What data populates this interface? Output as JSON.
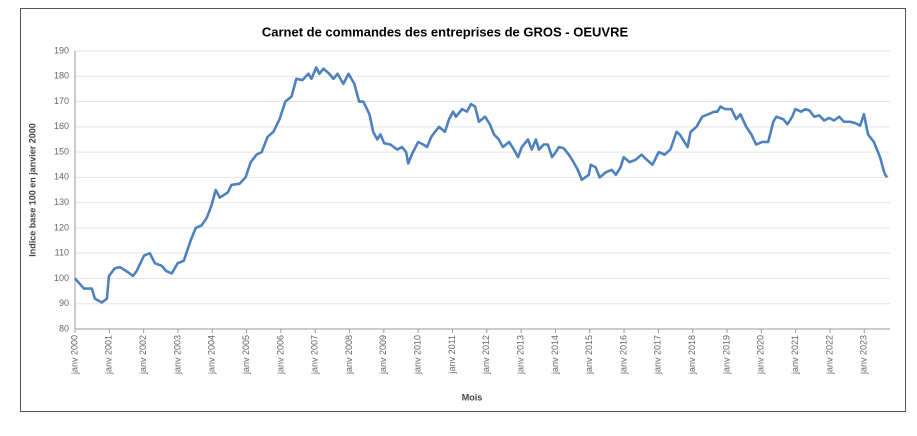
{
  "chart_data": {
    "type": "line",
    "title": "Carnet de commandes des entreprises de GROS - OEUVRE",
    "x_label": "Mois",
    "y_label": "Indice base 100 en janvier 2000",
    "x": [
      2000.0,
      2000.26,
      2000.49,
      2000.58,
      2000.78,
      2000.93,
      2000.99,
      2001.16,
      2001.31,
      2001.54,
      2001.69,
      2001.8,
      2002.01,
      2002.18,
      2002.33,
      2002.53,
      2002.65,
      2002.82,
      2002.99,
      2003.17,
      2003.37,
      2003.52,
      2003.69,
      2003.84,
      2003.98,
      2004.1,
      2004.22,
      2004.45,
      2004.56,
      2004.8,
      2004.97,
      2005.12,
      2005.29,
      2005.44,
      2005.61,
      2005.78,
      2005.96,
      2006.13,
      2006.31,
      2006.45,
      2006.63,
      2006.8,
      2006.89,
      2007.03,
      2007.12,
      2007.24,
      2007.41,
      2007.53,
      2007.65,
      2007.82,
      2007.97,
      2008.14,
      2008.28,
      2008.4,
      2008.58,
      2008.69,
      2008.81,
      2008.9,
      2009.01,
      2009.19,
      2009.39,
      2009.53,
      2009.65,
      2009.71,
      2009.83,
      2010.0,
      2010.15,
      2010.26,
      2010.38,
      2010.49,
      2010.61,
      2010.78,
      2010.9,
      2011.02,
      2011.1,
      2011.28,
      2011.42,
      2011.54,
      2011.66,
      2011.77,
      2011.95,
      2012.09,
      2012.21,
      2012.35,
      2012.47,
      2012.65,
      2012.79,
      2012.91,
      2013.02,
      2013.2,
      2013.31,
      2013.43,
      2013.52,
      2013.66,
      2013.78,
      2013.9,
      2014.01,
      2014.1,
      2014.24,
      2014.39,
      2014.53,
      2014.65,
      2014.77,
      2014.97,
      2015.03,
      2015.17,
      2015.29,
      2015.47,
      2015.64,
      2015.76,
      2015.9,
      2015.99,
      2016.16,
      2016.34,
      2016.51,
      2016.66,
      2016.83,
      2017.01,
      2017.18,
      2017.35,
      2017.53,
      2017.62,
      2017.76,
      2017.85,
      2017.94,
      2018.11,
      2018.28,
      2018.46,
      2018.63,
      2018.72,
      2018.81,
      2018.95,
      2019.13,
      2019.27,
      2019.39,
      2019.56,
      2019.71,
      2019.85,
      2020.03,
      2020.2,
      2020.35,
      2020.44,
      2020.64,
      2020.76,
      2020.9,
      2020.99,
      2021.16,
      2021.28,
      2021.4,
      2021.54,
      2021.69,
      2021.83,
      2021.98,
      2022.12,
      2022.27,
      2022.41,
      2022.59,
      2022.73,
      2022.88,
      2022.99,
      2023.11,
      2023.28,
      2023.46,
      2023.58,
      2023.66
    ],
    "series": [
      {
        "color": "#4f81bd",
        "values": [
          100,
          96,
          96,
          92,
          90.5,
          92,
          101,
          104,
          104.5,
          102.5,
          101,
          103,
          109,
          110,
          106,
          105,
          103,
          102,
          106,
          107,
          115,
          120,
          121,
          124,
          129,
          135,
          132,
          134,
          137,
          137.5,
          140,
          146,
          149,
          150,
          156,
          158,
          163,
          170,
          172,
          179,
          178.5,
          181,
          179,
          183.5,
          181,
          183,
          181,
          179,
          181,
          177,
          181,
          177,
          170,
          170,
          165,
          158,
          155,
          157,
          153.5,
          153,
          151,
          152,
          150,
          145.5,
          149.5,
          154,
          153,
          152,
          156,
          158,
          160,
          158,
          163,
          166,
          164,
          167,
          166,
          169,
          168,
          162,
          164,
          161,
          157,
          155,
          152,
          154,
          151,
          148,
          152,
          155,
          151,
          155,
          151,
          153,
          153,
          148,
          150,
          152,
          151.5,
          149,
          146,
          143,
          139,
          141,
          145,
          144,
          140,
          142,
          143,
          141,
          144,
          148,
          146,
          147,
          149,
          147,
          145,
          150,
          149,
          151,
          158,
          157,
          154,
          152,
          158,
          160,
          164,
          165,
          166,
          166,
          168,
          167,
          167,
          163,
          165,
          160,
          157,
          153,
          154,
          154,
          162,
          164,
          163,
          161,
          164,
          167,
          166,
          167,
          166.5,
          164,
          164.5,
          162.5,
          163.5,
          162.5,
          164,
          162,
          162,
          161.5,
          160.5,
          165,
          157,
          154,
          148,
          142,
          140
        ]
      }
    ],
    "xlim": [
      2000,
      2023.75
    ],
    "xticks": [
      {
        "value": 2000,
        "label": "janv 2000"
      },
      {
        "value": 2001,
        "label": "janv 2001"
      },
      {
        "value": 2002,
        "label": "janv 2002"
      },
      {
        "value": 2003,
        "label": "janv 2003"
      },
      {
        "value": 2004,
        "label": "janv 2004"
      },
      {
        "value": 2005,
        "label": "janv 2005"
      },
      {
        "value": 2006,
        "label": "janv 2006"
      },
      {
        "value": 2007,
        "label": "janv 2007"
      },
      {
        "value": 2008,
        "label": "janv 2008"
      },
      {
        "value": 2009,
        "label": "janv 2009"
      },
      {
        "value": 2010,
        "label": "janv 2010"
      },
      {
        "value": 2011,
        "label": "janv 2011"
      },
      {
        "value": 2012,
        "label": "janv 2012"
      },
      {
        "value": 2013,
        "label": "janv 2013"
      },
      {
        "value": 2014,
        "label": "janv 2014"
      },
      {
        "value": 2015,
        "label": "janv 2015"
      },
      {
        "value": 2016,
        "label": "janv 2016"
      },
      {
        "value": 2017,
        "label": "janv 2017"
      },
      {
        "value": 2018,
        "label": "janv 2018"
      },
      {
        "value": 2019,
        "label": "janv 2019"
      },
      {
        "value": 2020,
        "label": "janv 2020"
      },
      {
        "value": 2021,
        "label": "janv 2021"
      },
      {
        "value": 2022,
        "label": "janv 2022"
      },
      {
        "value": 2023,
        "label": "janv 2023"
      }
    ],
    "ylim": [
      80,
      190
    ],
    "yticks": [
      80,
      90,
      100,
      110,
      120,
      130,
      140,
      150,
      160,
      170,
      180,
      190
    ],
    "grid": true
  }
}
